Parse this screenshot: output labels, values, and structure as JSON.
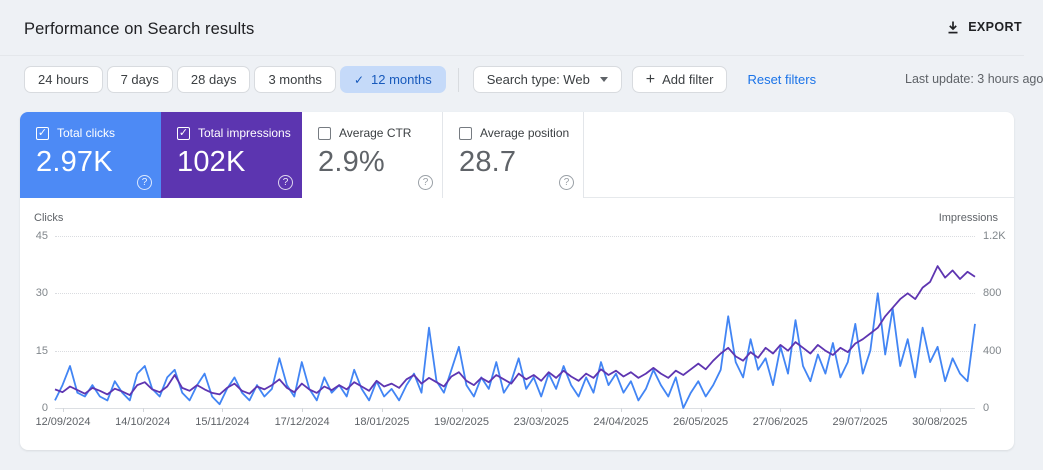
{
  "header": {
    "title": "Performance on Search results",
    "export_label": "EXPORT"
  },
  "filters": {
    "date_ranges": [
      {
        "label": "24 hours",
        "selected": false
      },
      {
        "label": "7 days",
        "selected": false
      },
      {
        "label": "28 days",
        "selected": false
      },
      {
        "label": "3 months",
        "selected": false
      },
      {
        "label": "12 months",
        "selected": true
      }
    ],
    "selected_check": "✓",
    "search_type_label": "Search type: Web",
    "add_filter_label": "Add filter",
    "add_filter_plus": "+",
    "reset_filters_label": "Reset filters",
    "last_update": "Last update: 3 hours ago"
  },
  "metrics": [
    {
      "label": "Total clicks",
      "value": "2.97K",
      "checked": true,
      "color": "#4d8af5",
      "check_glyph": "✓",
      "help_glyph": "?"
    },
    {
      "label": "Total impressions",
      "value": "102K",
      "checked": true,
      "color": "#5c35b0",
      "check_glyph": "✓",
      "help_glyph": "?"
    },
    {
      "label": "Average CTR",
      "value": "2.9%",
      "checked": false,
      "color": "#ffffff",
      "check_glyph": "",
      "help_glyph": "?"
    },
    {
      "label": "Average position",
      "value": "28.7",
      "checked": false,
      "color": "#ffffff",
      "check_glyph": "",
      "help_glyph": "?"
    }
  ],
  "chart_data": {
    "type": "line",
    "grid": "dotted-horizontal",
    "left_axis": {
      "label": "Clicks",
      "ticks": [
        "45",
        "30",
        "15",
        "0"
      ],
      "max": 45
    },
    "right_axis": {
      "label": "Impressions",
      "ticks": [
        "1.2K",
        "800",
        "400",
        "0"
      ],
      "max": 1200
    },
    "x_tick_labels": [
      "12/09/2024",
      "14/10/2024",
      "15/11/2024",
      "17/12/2024",
      "18/01/2025",
      "19/02/2025",
      "23/03/2025",
      "24/04/2025",
      "26/05/2025",
      "27/06/2025",
      "29/07/2025",
      "30/08/2025"
    ],
    "series": [
      {
        "name": "Clicks",
        "axis": "left",
        "color": "#4285f4",
        "values": [
          2,
          6,
          11,
          4,
          3,
          6,
          3,
          2,
          7,
          4,
          2,
          9,
          11,
          5,
          3,
          8,
          10,
          4,
          2,
          6,
          9,
          3,
          1,
          5,
          8,
          4,
          2,
          6,
          3,
          5,
          13,
          6,
          3,
          12,
          5,
          2,
          8,
          4,
          6,
          3,
          10,
          5,
          2,
          7,
          3,
          5,
          2,
          6,
          9,
          4,
          21,
          7,
          4,
          10,
          16,
          6,
          3,
          8,
          5,
          12,
          4,
          7,
          13,
          5,
          8,
          3,
          9,
          5,
          11,
          6,
          3,
          8,
          4,
          12,
          6,
          9,
          4,
          7,
          2,
          5,
          10,
          6,
          3,
          8,
          0,
          4,
          7,
          3,
          6,
          10,
          24,
          12,
          8,
          18,
          10,
          13,
          6,
          16,
          9,
          23,
          11,
          7,
          14,
          9,
          17,
          8,
          12,
          22,
          9,
          15,
          30,
          14,
          26,
          11,
          18,
          8,
          21,
          12,
          16,
          7,
          13,
          9,
          7,
          22
        ]
      },
      {
        "name": "Impressions",
        "axis": "right",
        "color": "#5e35b1",
        "values": [
          130,
          110,
          150,
          125,
          100,
          140,
          120,
          95,
          135,
          115,
          90,
          160,
          180,
          130,
          110,
          150,
          230,
          140,
          120,
          160,
          130,
          105,
          95,
          140,
          170,
          120,
          100,
          150,
          130,
          160,
          200,
          140,
          110,
          170,
          130,
          105,
          150,
          125,
          160,
          130,
          180,
          150,
          120,
          190,
          150,
          170,
          140,
          200,
          230,
          170,
          210,
          180,
          150,
          220,
          250,
          190,
          160,
          210,
          180,
          230,
          200,
          170,
          240,
          200,
          230,
          190,
          250,
          210,
          260,
          220,
          190,
          240,
          210,
          270,
          230,
          260,
          220,
          250,
          210,
          240,
          280,
          240,
          210,
          260,
          230,
          270,
          310,
          270,
          330,
          380,
          420,
          360,
          330,
          390,
          350,
          420,
          380,
          440,
          400,
          460,
          420,
          380,
          440,
          400,
          370,
          420,
          390,
          450,
          480,
          520,
          560,
          640,
          700,
          760,
          800,
          760,
          840,
          880,
          990,
          910,
          960,
          900,
          950,
          915
        ]
      }
    ]
  }
}
